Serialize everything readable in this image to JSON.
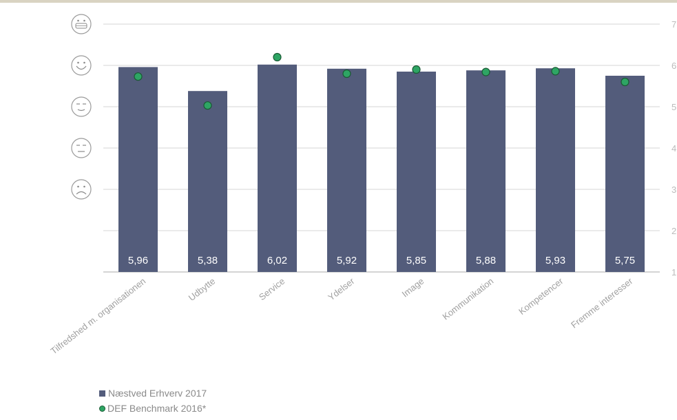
{
  "chart_data": {
    "type": "bar",
    "categories": [
      "Tilfredshed m. organisationen",
      "Udbytte",
      "Service",
      "Ydelser",
      "Image",
      "Kommunikation",
      "Kompetencer",
      "Fremme interesser"
    ],
    "series": [
      {
        "name": "Næstved Erhverv 2017",
        "values": [
          5.96,
          5.38,
          6.02,
          5.92,
          5.85,
          5.88,
          5.93,
          5.75
        ],
        "color": "#535c7b",
        "labels": [
          "5,96",
          "5,38",
          "6,02",
          "5,92",
          "5,85",
          "5,88",
          "5,93",
          "5,75"
        ]
      },
      {
        "name": "DEF Benchmark 2016*",
        "values": [
          5.73,
          5.03,
          6.2,
          5.8,
          5.9,
          5.84,
          5.86,
          5.6
        ],
        "color": "#2ea564",
        "marker": "circle"
      }
    ],
    "ylim": [
      1,
      7
    ],
    "yticks": [
      "1",
      "2",
      "3",
      "4",
      "5",
      "6",
      "7"
    ],
    "y_axis_icons": [
      "grinning-face",
      "smiling-face",
      "slightly-smiling-face",
      "neutral-face",
      "frowning-face"
    ],
    "grid": true,
    "legend_position": "bottom-left"
  }
}
